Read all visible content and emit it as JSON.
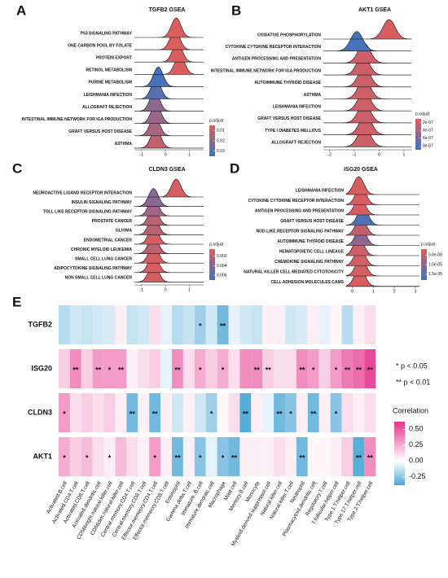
{
  "chart_data": [
    {
      "type": "ridge",
      "letter": "A",
      "title": "TGFB2 GSEA",
      "categories": [
        "P53 SIGNALING PATHWAY",
        "ONE CARBON POOL BY FOLATE",
        "PROTEIN EXPORT",
        "RETINOL METABOLISM",
        "PURINE METABOLISM",
        "LEISHMANIA INFECTION",
        "ALLOGRAFT REJECTION",
        "INTESTINAL IMMUNE NETWORK FOR IGA PRODUCTION",
        "GRAFT VERSUS HOST DISEASE",
        "ASTHMA"
      ],
      "values": [
        0.45,
        0.4,
        0.5,
        0.6,
        -0.3,
        -0.4,
        -0.45,
        -0.4,
        -0.45,
        -0.4
      ],
      "padjust": [
        0.006,
        0.006,
        0.006,
        0.006,
        0.033,
        0.03,
        0.02,
        0.018,
        0.015,
        0.01
      ],
      "xlim": [
        -1.3,
        1.6
      ],
      "xticks": [
        -1,
        0,
        1
      ],
      "legend_title": "p.adjust",
      "legend_lim": [
        0.005,
        0.035
      ],
      "legend_ticks": [
        0.01,
        0.02,
        0.03
      ],
      "color_scale": [
        "#e05d5b",
        "#3b74c2"
      ]
    },
    {
      "type": "ridge",
      "letter": "B",
      "title": "AKT1 GSEA",
      "categories": [
        "OXIDATIVE PHOSPHORYLATION",
        "CYTOKINE CYTOKINE RECEPTOR INTERACTION",
        "ANTIGEN PROCESSING AND PRESENTATION",
        "INTESTINAL IMMUNE NETWORK FOR IGA PRODUCTION",
        "AUTOIMMUNE THYROID DISEASE",
        "ASTHMA",
        "LEISHMANIA INFECTION",
        "GRAFT VERSUS HOST DISEASE",
        "TYPE I DIABETES MELLITUS",
        "ALLOGRAFT REJECTION"
      ],
      "values": [
        0.4,
        -0.9,
        -0.6,
        -0.65,
        -0.6,
        -0.6,
        -0.6,
        -0.6,
        -0.55,
        -0.6
      ],
      "padjust": [
        1.5e-07,
        8.5e-07,
        2e-07,
        2e-07,
        2e-07,
        2e-07,
        2e-07,
        2e-07,
        2e-07,
        2e-07
      ],
      "xlim": [
        -2.25,
        1.3
      ],
      "xticks": [
        -2,
        -1,
        0,
        1
      ],
      "legend_title": "p.adjust",
      "legend_lim": [
        1e-07,
        9e-07
      ],
      "legend_ticks": [
        {
          "value": 2e-07,
          "label": "2e-07"
        },
        {
          "value": 4e-07,
          "label": "4e-07"
        },
        {
          "value": 6e-07,
          "label": "6e-07"
        },
        {
          "value": 8e-07,
          "label": "8e-07"
        }
      ],
      "color_scale": [
        "#e05d5b",
        "#3b74c2"
      ]
    },
    {
      "type": "ridge",
      "letter": "C",
      "title": "CLDN3 GSEA",
      "categories": [
        "NEUROACTIVE LIGAND RECEPTOR INTERACTION",
        "INSULIN SIGNALING PATHWAY",
        "TOLL LIKE RECEPTOR SIGNALING PATHWAY",
        "PROSTATE CANCER",
        "GLIOMA",
        "ENDOMETRIAL CANCER",
        "CHRONIC MYELOID LEUKEMIA",
        "SMALL CELL LUNG CANCER",
        "ADIPOCYTOKINE SIGNALING PATHWAY",
        "NON SMALL CELL LUNG CANCER"
      ],
      "values": [
        0.45,
        -0.5,
        -0.5,
        -0.5,
        -0.5,
        -0.5,
        -0.5,
        -0.5,
        -0.5,
        -0.5
      ],
      "padjust": [
        0.001,
        0.004,
        0.003,
        0.002,
        0.002,
        0.001,
        0.002,
        0.001,
        0.001,
        0.001
      ],
      "xlim": [
        -1.3,
        1.6
      ],
      "xticks": [
        -1,
        0,
        1
      ],
      "legend_title": "p.adjust",
      "legend_lim": [
        0.0005,
        0.007
      ],
      "legend_ticks": [
        0.002,
        0.004,
        0.006
      ],
      "color_scale": [
        "#e05d5b",
        "#3b74c2"
      ]
    },
    {
      "type": "ridge",
      "letter": "D",
      "title": "ISG20 GSEA",
      "categories": [
        "LEISHMANIA INFECTION",
        "CYTOKINE CYTOKINE RECEPTOR INTERACTION",
        "ANTIGEN PROCESSING AND PRESENTATION",
        "GRAFT VERSUS HOST DISEASE",
        "NOD LIKE RECEPTOR SIGNALING PATHWAY",
        "AUTOIMMUNE THYROID DISEASE",
        "HEMATOPOIETIC CELL LINEAGE",
        "CHEMOKINE SIGNALING PATHWAY",
        "NATURAL KILLER CELL MEDIATED CYTOTOXICITY",
        "CELL ADHESION MOLECULES CAMS"
      ],
      "values": [
        0.3,
        0.4,
        0.35,
        0.5,
        0.4,
        0.4,
        0.3,
        0.35,
        0.4,
        0.35
      ],
      "padjust": [
        3e-06,
        3e-06,
        3e-06,
        1.6e-05,
        5e-06,
        1e-05,
        4e-06,
        3e-06,
        3e-06,
        3e-06
      ],
      "xlim": [
        -0.3,
        3.2
      ],
      "xticks": [
        0,
        1,
        2,
        3
      ],
      "legend_title": "p.adjust",
      "legend_lim": [
        2e-06,
        1.8e-05
      ],
      "legend_ticks": [
        {
          "value": 5e-06,
          "label": "5.0e-06"
        },
        {
          "value": 1e-05,
          "label": "1.0e-05"
        },
        {
          "value": 1.5e-05,
          "label": "1.5e-05"
        }
      ],
      "color_scale": [
        "#e05d5b",
        "#3b74c2"
      ]
    },
    {
      "type": "heatmap",
      "letter": "E",
      "rows": [
        "TGFB2",
        "ISG20",
        "CLDN3",
        "AKT1"
      ],
      "columns": [
        "Activated.B.cell",
        "Activated.CD4.T.cell",
        "Activated.CD8.T.cell",
        "Activated.dendritic.cell",
        "CD56bright.natural.killer.cell",
        "CD56dim.natural.killer.cell",
        "Central.memory.CD4.T.cell",
        "Central.memory.CD8.T.cell",
        "Effector.memeory.CD4.T.cell",
        "Effector.memeory.CD8.T.cell",
        "Eosinophil",
        "Gamma.delta.T.cell",
        "Immature..B.cell",
        "Immature.dendritic.cell",
        "Macrophage",
        "Mast.cell",
        "Memory.B.cell",
        "Monocyte",
        "Myeloid.derived.suppressor.cell",
        "Natural.killer.cell",
        "Natural.killer.T.cell",
        "Neutrophil",
        "Plasmacytoid.dendritic.cell",
        "Regulatory.T.cell",
        "T.follicular.helper.cell",
        "Type.1.T.helper.cell",
        "Type.17.T.helper.cell",
        "Type.2.T.helper.cell"
      ],
      "values": [
        [
          -0.15,
          -0.1,
          -0.12,
          -0.1,
          -0.08,
          0.05,
          -0.12,
          -0.1,
          0.1,
          -0.05,
          -0.15,
          -0.12,
          -0.2,
          -0.1,
          -0.3,
          -0.05,
          -0.1,
          -0.12,
          0.05,
          0.05,
          -0.1,
          -0.08,
          0.05,
          -0.05,
          0.02,
          -0.15,
          0.05,
          0.1
        ],
        [
          0.15,
          0.35,
          0.15,
          0.3,
          0.3,
          0.3,
          0.05,
          0.1,
          0.15,
          -0.05,
          0.35,
          0.1,
          0.25,
          0.15,
          0.25,
          0.1,
          0.35,
          0.35,
          0.15,
          0.1,
          0.1,
          0.35,
          0.3,
          0.15,
          0.3,
          0.4,
          0.45,
          0.55
        ],
        [
          0.3,
          0.1,
          0.15,
          0.1,
          0.15,
          0.05,
          -0.3,
          0.05,
          -0.3,
          0.05,
          -0.1,
          0.05,
          -0.1,
          -0.2,
          0.02,
          0.1,
          -0.35,
          0.05,
          -0.05,
          -0.3,
          -0.25,
          0.05,
          -0.3,
          0.05,
          -0.25,
          0.1,
          0.05,
          0.1
        ],
        [
          0.25,
          0.15,
          0.2,
          0.1,
          0.05,
          0.2,
          0.1,
          0.05,
          0.3,
          0.05,
          -0.3,
          0.05,
          -0.25,
          -0.05,
          -0.25,
          -0.3,
          0.05,
          0.05,
          0.05,
          0.1,
          0.05,
          -0.3,
          0.02,
          0.02,
          0.05,
          0.15,
          -0.35,
          0.35
        ]
      ],
      "stars": [
        [
          null,
          null,
          null,
          null,
          null,
          null,
          null,
          null,
          null,
          null,
          null,
          null,
          "*",
          null,
          "**",
          null,
          null,
          null,
          null,
          null,
          null,
          null,
          null,
          null,
          null,
          null,
          null,
          null
        ],
        [
          null,
          "**",
          null,
          "**",
          "*",
          "**",
          null,
          null,
          null,
          null,
          "**",
          null,
          "*",
          null,
          "*",
          null,
          null,
          "**",
          "**",
          null,
          null,
          "**",
          "*",
          null,
          "*",
          "**",
          "**",
          "**"
        ],
        [
          "*",
          null,
          null,
          null,
          null,
          null,
          "**",
          null,
          "**",
          null,
          null,
          null,
          null,
          "*",
          null,
          null,
          "**",
          null,
          null,
          "**",
          "*",
          null,
          "**",
          null,
          "*",
          null,
          null,
          null
        ],
        [
          "*",
          null,
          "*",
          null,
          "*",
          null,
          null,
          null,
          "*",
          null,
          "**",
          null,
          "*",
          null,
          "*",
          "**",
          null,
          null,
          null,
          null,
          null,
          "**",
          null,
          null,
          null,
          null,
          "**",
          "**"
        ]
      ],
      "significance": [
        "* p < 0.05",
        "** p < 0.01"
      ],
      "legend_title": "Correlation",
      "legend_lim": [
        -0.38,
        0.62
      ],
      "legend_ticks": [
        {
          "value": 0.5,
          "label": "0.50"
        },
        0.25,
        {
          "value": 0,
          "label": "0.00"
        },
        -0.25
      ],
      "color_scale": [
        "#4ba6d6",
        "#ffffff",
        "#e4338b"
      ]
    }
  ]
}
